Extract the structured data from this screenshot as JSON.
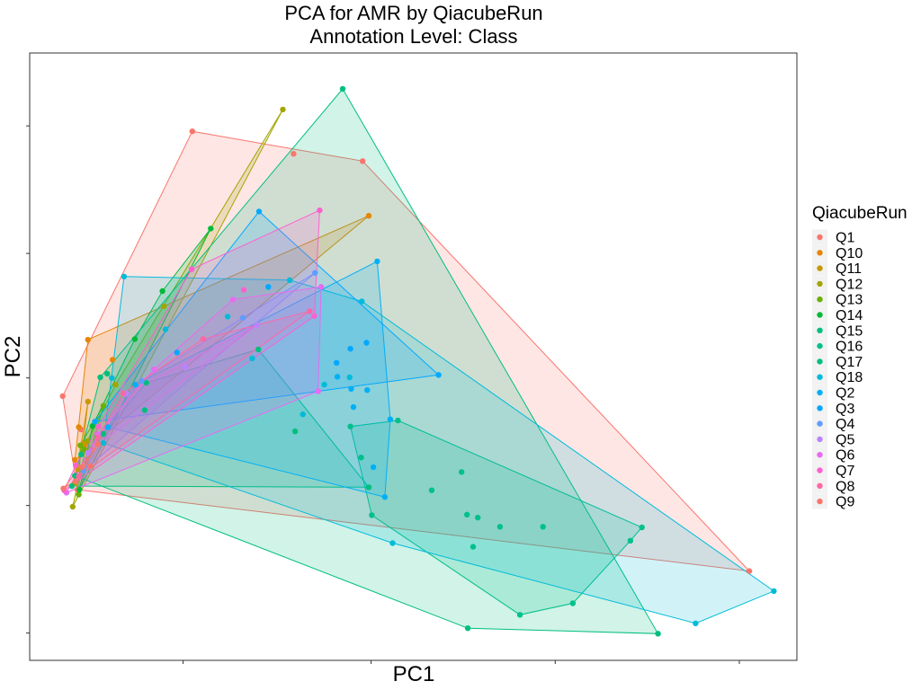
{
  "chart_data": {
    "type": "scatter",
    "title_lines": [
      "PCA for AMR by QiacubeRun",
      "Annotation Level: Class"
    ],
    "xlabel": "PC1",
    "ylabel": "PC2",
    "xlim": [
      0,
      100
    ],
    "ylim": [
      0,
      100
    ],
    "x_ticks": [
      20,
      44.5,
      68.5,
      92.5
    ],
    "y_ticks": [
      4.5,
      25.5,
      46.5,
      67,
      88
    ],
    "grid": false,
    "legend": {
      "title": "QiacubeRun",
      "position": "right"
    },
    "hulls": "convex hull polygon per series with translucent fill",
    "series": [
      {
        "name": "Q1",
        "color": "#F8766D",
        "points": [
          [
            21.2,
            87.1
          ],
          [
            34.4,
            83.4
          ],
          [
            43.4,
            82.2
          ],
          [
            93.8,
            14.7
          ],
          [
            6.2,
            28.1
          ],
          [
            7.9,
            32.0
          ],
          [
            4.3,
            43.5
          ],
          [
            6.7,
            38.0
          ]
        ]
      },
      {
        "name": "Q10",
        "color": "#E58700",
        "points": [
          [
            7.6,
            52.8
          ],
          [
            44.2,
            73.2
          ],
          [
            10.8,
            49.5
          ],
          [
            5.9,
            33.0
          ],
          [
            6.4,
            38.4
          ],
          [
            7.2,
            35.5
          ]
        ]
      },
      {
        "name": "Q11",
        "color": "#C99800",
        "points": [
          [
            7.6,
            42.6
          ],
          [
            5.9,
            29.1
          ],
          [
            7.0,
            35.7
          ],
          [
            6.3,
            31.5
          ]
        ]
      },
      {
        "name": "Q12",
        "color": "#A3A500",
        "points": [
          [
            33.0,
            90.7
          ],
          [
            5.6,
            25.3
          ],
          [
            17.5,
            58.3
          ],
          [
            11.2,
            45.4
          ],
          [
            7.5,
            36.1
          ]
        ]
      },
      {
        "name": "Q13",
        "color": "#6BB100",
        "points": [
          [
            6.6,
            35.4
          ],
          [
            9.6,
            41.9
          ],
          [
            6.4,
            27.3
          ],
          [
            7.1,
            34.7
          ]
        ]
      },
      {
        "name": "Q14",
        "color": "#00BA38",
        "points": [
          [
            23.6,
            71.1
          ],
          [
            6.5,
            28.1
          ],
          [
            13.7,
            52.9
          ],
          [
            17.3,
            60.8
          ],
          [
            8.2,
            38.6
          ]
        ]
      },
      {
        "name": "Q15",
        "color": "#00BF7D",
        "points": [
          [
            44.2,
            28.5
          ],
          [
            9.6,
            37.3
          ],
          [
            5.5,
            28.7
          ],
          [
            15.2,
            45.7
          ],
          [
            29.8,
            51.2
          ]
        ]
      },
      {
        "name": "Q16",
        "color": "#00C08B",
        "points": [
          [
            48.0,
            39.5
          ],
          [
            79.8,
            21.9
          ],
          [
            70.8,
            9.4
          ],
          [
            63.9,
            7.5
          ],
          [
            44.6,
            23.9
          ],
          [
            58.4,
            23.5
          ],
          [
            52.4,
            28.0
          ],
          [
            56.3,
            31.0
          ],
          [
            57.0,
            24.0
          ],
          [
            61.3,
            22.0
          ],
          [
            78.3,
            19.7
          ],
          [
            57.8,
            18.7
          ],
          [
            66.9,
            22.0
          ],
          [
            41.8,
            38.5
          ],
          [
            43.2,
            33.4
          ]
        ]
      },
      {
        "name": "Q17",
        "color": "#00BF7D",
        "points": [
          [
            40.8,
            94.1
          ],
          [
            81.9,
            4.4
          ],
          [
            57.1,
            5.3
          ],
          [
            10.1,
            47.2
          ],
          [
            34.6,
            37.7
          ],
          [
            9.2,
            46.6
          ],
          [
            5.9,
            30.4
          ],
          [
            6.7,
            33.9
          ],
          [
            15.0,
            41.2
          ]
        ]
      },
      {
        "name": "Q18",
        "color": "#00BCD8",
        "points": [
          [
            12.3,
            63.2
          ],
          [
            41.7,
            46.6
          ],
          [
            10.7,
            46.5
          ],
          [
            17.7,
            54.5
          ],
          [
            25.8,
            56.6
          ],
          [
            33.9,
            62.6
          ],
          [
            43.3,
            59.1
          ],
          [
            38.4,
            45.4
          ],
          [
            35.6,
            40.5
          ],
          [
            29.0,
            49.7
          ],
          [
            97.0,
            11.4
          ],
          [
            86.8,
            6.1
          ],
          [
            47.3,
            19.3
          ],
          [
            9.6,
            35.8
          ]
        ]
      },
      {
        "name": "Q2",
        "color": "#00B0F6",
        "points": [
          [
            45.3,
            65.7
          ],
          [
            46.3,
            26.9
          ],
          [
            40.1,
            46.7
          ],
          [
            44.8,
            31.8
          ],
          [
            47.0,
            39.7
          ],
          [
            41.9,
            44.7
          ],
          [
            44.0,
            44.5
          ],
          [
            42.2,
            41.7
          ],
          [
            10.2,
            38.4
          ],
          [
            13.8,
            45.4
          ]
        ]
      },
      {
        "name": "Q3",
        "color": "#00A9FF",
        "points": [
          [
            29.9,
            73.9
          ],
          [
            53.3,
            47.0
          ],
          [
            41.8,
            51.3
          ],
          [
            43.9,
            52.3
          ],
          [
            8.5,
            39.3
          ],
          [
            40.0,
            49.0
          ],
          [
            31.1,
            61.5
          ],
          [
            19.2,
            50.7
          ]
        ]
      },
      {
        "name": "Q4",
        "color": "#619CFF",
        "points": [
          [
            37.2,
            63.8
          ],
          [
            7.0,
            31.2
          ],
          [
            14.6,
            46.0
          ],
          [
            27.8,
            56.4
          ]
        ]
      },
      {
        "name": "Q5",
        "color": "#B983FF",
        "points": [
          [
            29.6,
            55.2
          ],
          [
            7.6,
            34.2
          ],
          [
            20.2,
            48.3
          ],
          [
            12.6,
            43.9
          ]
        ]
      },
      {
        "name": "Q6",
        "color": "#E76BF3",
        "points": [
          [
            38.0,
            61.5
          ],
          [
            37.6,
            44.3
          ],
          [
            4.8,
            27.6
          ],
          [
            8.9,
            37.2
          ],
          [
            26.5,
            59.4
          ],
          [
            16.2,
            47.9
          ]
        ]
      },
      {
        "name": "Q7",
        "color": "#FD61D1",
        "points": [
          [
            37.8,
            74.1
          ],
          [
            4.5,
            28.0
          ],
          [
            21.1,
            64.4
          ],
          [
            6.0,
            32.1
          ],
          [
            9.0,
            38.5
          ],
          [
            27.9,
            61.0
          ],
          [
            37.1,
            56.7
          ]
        ]
      },
      {
        "name": "Q8",
        "color": "#FF67A4",
        "points": [
          [
            36.5,
            57.5
          ],
          [
            6.4,
            30.3
          ],
          [
            8.9,
            36.7
          ],
          [
            22.6,
            52.9
          ],
          [
            12.2,
            44.0
          ]
        ]
      },
      {
        "name": "Q9",
        "color": "#F8766D",
        "points": [
          [
            4.4,
            28.3
          ],
          [
            6.8,
            31.8
          ],
          [
            8.9,
            35.6
          ],
          [
            6.0,
            29.5
          ]
        ]
      }
    ]
  }
}
